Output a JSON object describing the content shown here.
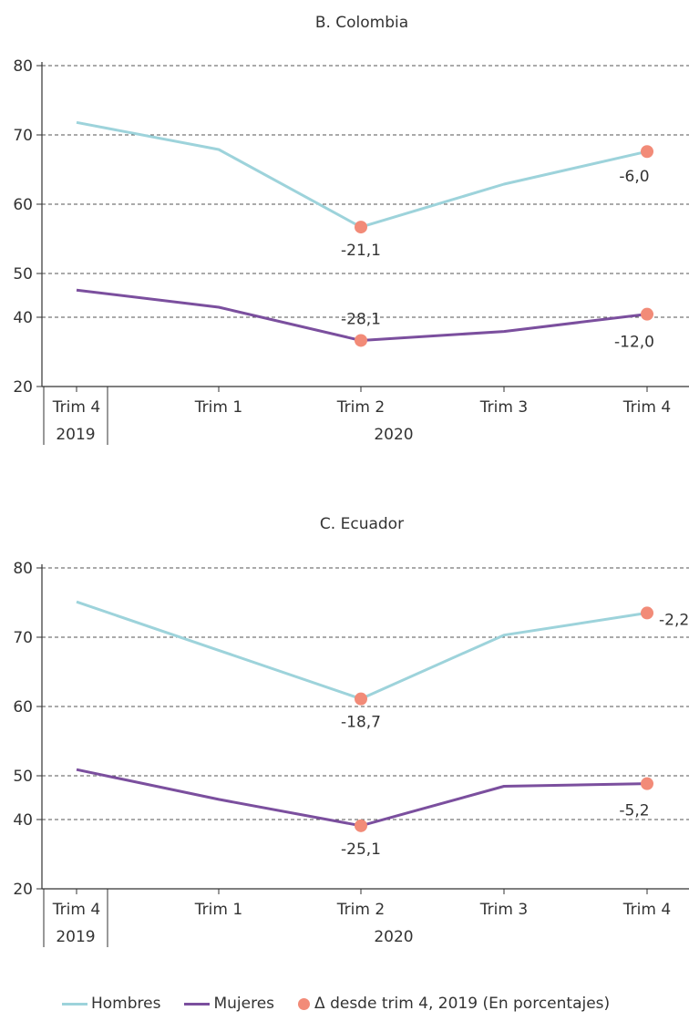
{
  "chart_data": [
    {
      "type": "line",
      "title": "B. Colombia",
      "categories": [
        "Trim 4",
        "Trim 1",
        "Trim 2",
        "Trim 3",
        "Trim 4"
      ],
      "year_labels": [
        "2019",
        "2020"
      ],
      "yticks": [
        20,
        40,
        50,
        60,
        70,
        80
      ],
      "grid": true,
      "series": [
        {
          "name": "Hombres",
          "values": [
            71.8,
            67.9,
            56.7,
            62.9,
            67.6
          ]
        },
        {
          "name": "Mujeres",
          "values": [
            46.2,
            42.3,
            33.3,
            35.9,
            40.7
          ]
        }
      ],
      "markers": [
        {
          "series": 0,
          "index": 2,
          "label": "-21,1"
        },
        {
          "series": 0,
          "index": 4,
          "label": "-6,0"
        },
        {
          "series": 1,
          "index": 2,
          "label": "-28,1"
        },
        {
          "series": 1,
          "index": 4,
          "label": "-12,0"
        }
      ]
    },
    {
      "type": "line",
      "title": "C. Ecuador",
      "categories": [
        "Trim 4",
        "Trim 1",
        "Trim 2",
        "Trim 3",
        "Trim 4"
      ],
      "year_labels": [
        "2019",
        "2020"
      ],
      "yticks": [
        20,
        40,
        50,
        60,
        70,
        80
      ],
      "grid": true,
      "series": [
        {
          "name": "Hombres",
          "values": [
            75.1,
            68.1,
            61.1,
            70.3,
            73.5
          ]
        },
        {
          "name": "Mujeres",
          "values": [
            50.9,
            44.6,
            38.2,
            47.6,
            48.2
          ]
        }
      ],
      "markers": [
        {
          "series": 0,
          "index": 2,
          "label": "-18,7"
        },
        {
          "series": 0,
          "index": 4,
          "label": "-2,2"
        },
        {
          "series": 1,
          "index": 2,
          "label": "-25,1"
        },
        {
          "series": 1,
          "index": 4,
          "label": "-5,2"
        }
      ]
    }
  ],
  "legend": {
    "hombres": "Hombres",
    "mujeres": "Mujeres",
    "delta": "Δ desde trim 4, 2019 (En porcentajes)"
  },
  "colors": {
    "hombres": "#9dd3db",
    "mujeres": "#7b4f9e",
    "marker": "#f28b78",
    "grid": "#555555",
    "axis": "#333333"
  }
}
